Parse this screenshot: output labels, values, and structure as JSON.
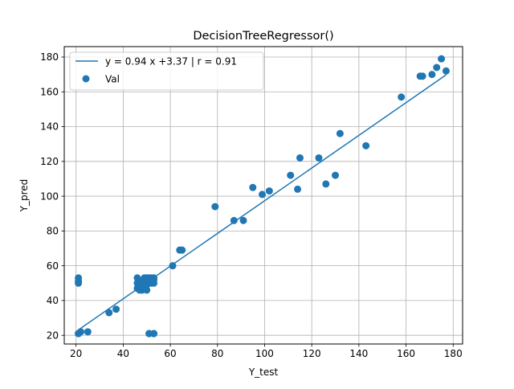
{
  "chart_data": {
    "type": "scatter",
    "title": "DecisionTreeRegressor()",
    "xlabel": "Y_test",
    "ylabel": "Y_pred",
    "xlim": [
      15,
      184
    ],
    "ylim": [
      15,
      186
    ],
    "xticks": [
      20,
      40,
      60,
      80,
      100,
      120,
      140,
      160,
      180
    ],
    "yticks": [
      20,
      40,
      60,
      80,
      100,
      120,
      140,
      160,
      180
    ],
    "grid": true,
    "legend_position": "top-left",
    "series": [
      {
        "name": "y = 0.94 x +3.37 | r = 0.91",
        "kind": "line",
        "color": "#1f77b4",
        "x": [
          21,
          177
        ],
        "y": [
          23.11,
          169.75
        ]
      },
      {
        "name": "Val",
        "kind": "scatter",
        "color": "#1f77b4",
        "x": [
          21,
          21,
          21,
          21,
          21,
          22,
          25,
          34,
          37,
          46,
          46,
          46,
          47,
          47,
          48,
          48,
          49,
          49,
          49,
          50,
          50,
          50,
          50,
          51,
          51,
          51,
          51,
          52,
          52,
          53,
          53,
          53,
          53,
          51,
          53,
          61,
          64,
          65,
          79,
          87,
          91,
          95,
          99,
          102,
          111,
          114,
          115,
          123,
          126,
          130,
          132,
          143,
          158,
          166,
          167,
          171,
          173,
          175,
          177
        ],
        "y": [
          53,
          51,
          50,
          21,
          21,
          22,
          22,
          33,
          35,
          53,
          50,
          47,
          51,
          46,
          46,
          49,
          53,
          50,
          47,
          53,
          51,
          49,
          46,
          53,
          52,
          50,
          21,
          53,
          50,
          53,
          52,
          50,
          21,
          21,
          21,
          60,
          69,
          69,
          94,
          86,
          86,
          105,
          101,
          103,
          112,
          104,
          122,
          122,
          107,
          112,
          136,
          129,
          157,
          169,
          169,
          170,
          174,
          179,
          172
        ]
      }
    ]
  }
}
